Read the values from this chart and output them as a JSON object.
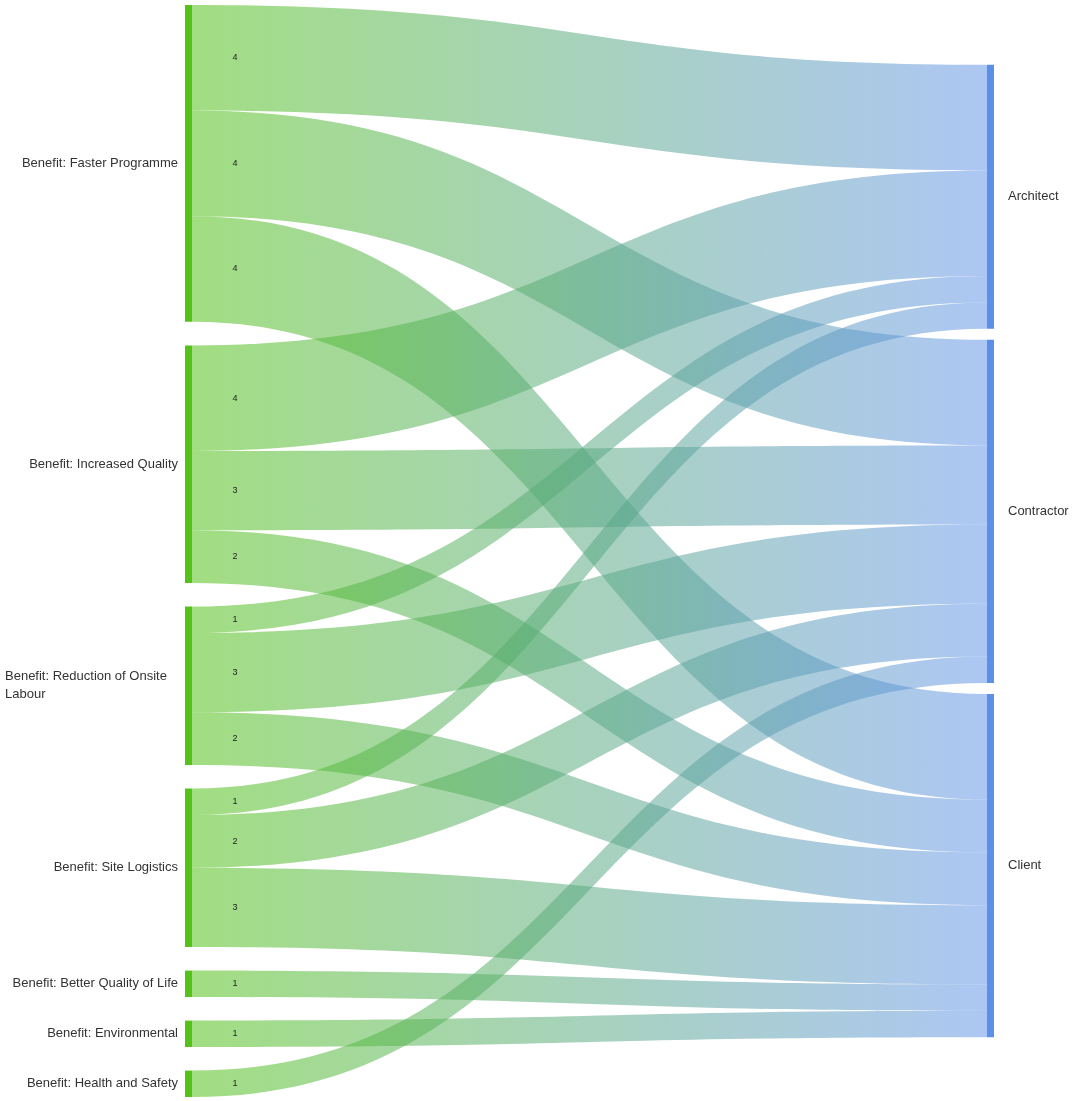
{
  "chart_data": {
    "type": "other",
    "categories": [
      "Benefit: Faster Programme",
      "Benefit: Increased Quality",
      "Benefit: Reduction of Onsite Labour",
      "Benefit: Site Logistics",
      "Benefit: Better Quality of Life",
      "Benefit: Environmental",
      "Benefit: Health and Safety"
    ],
    "color": "#55c21a",
    "series": [
      {
        "name": "Architect",
        "color": "#5b8fe8",
        "values": [
          4,
          4,
          1,
          1,
          null,
          null,
          null
        ]
      },
      {
        "name": "Contractor",
        "color": "#5b8fe8",
        "values": [
          4,
          3,
          3,
          2,
          null,
          null,
          1
        ]
      },
      {
        "name": "Client",
        "color": "#5b8fe8",
        "values": [
          4,
          2,
          2,
          3,
          1,
          1,
          null
        ]
      }
    ],
    "data_labels": true
  }
}
